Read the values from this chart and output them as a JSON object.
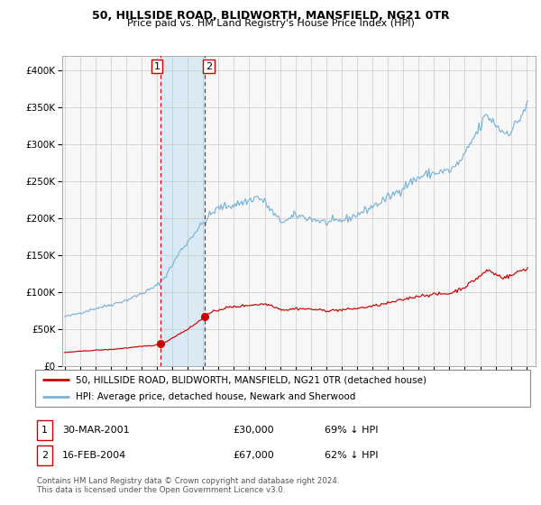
{
  "title1": "50, HILLSIDE ROAD, BLIDWORTH, MANSFIELD, NG21 0TR",
  "title2": "Price paid vs. HM Land Registry's House Price Index (HPI)",
  "ylim": [
    0,
    420000
  ],
  "yticks": [
    0,
    50000,
    100000,
    150000,
    200000,
    250000,
    300000,
    350000,
    400000
  ],
  "ytick_labels": [
    "£0",
    "£50K",
    "£100K",
    "£150K",
    "£200K",
    "£250K",
    "£300K",
    "£350K",
    "£400K"
  ],
  "hpi_color": "#7ab4d8",
  "price_color": "#cc0000",
  "marker_color": "#cc0000",
  "vline_color": "#cc0000",
  "shade_color": "#daeaf5",
  "grid_color": "#c8c8c8",
  "bg_color": "#f7f7f7",
  "transaction1_year": 2001.247,
  "transaction1_price": 30000,
  "transaction2_year": 2004.122,
  "transaction2_price": 67000,
  "legend_line1": "50, HILLSIDE ROAD, BLIDWORTH, MANSFIELD, NG21 0TR (detached house)",
  "legend_line2": "HPI: Average price, detached house, Newark and Sherwood",
  "footer1": "Contains HM Land Registry data © Crown copyright and database right 2024.",
  "footer2": "This data is licensed under the Open Government Licence v3.0."
}
